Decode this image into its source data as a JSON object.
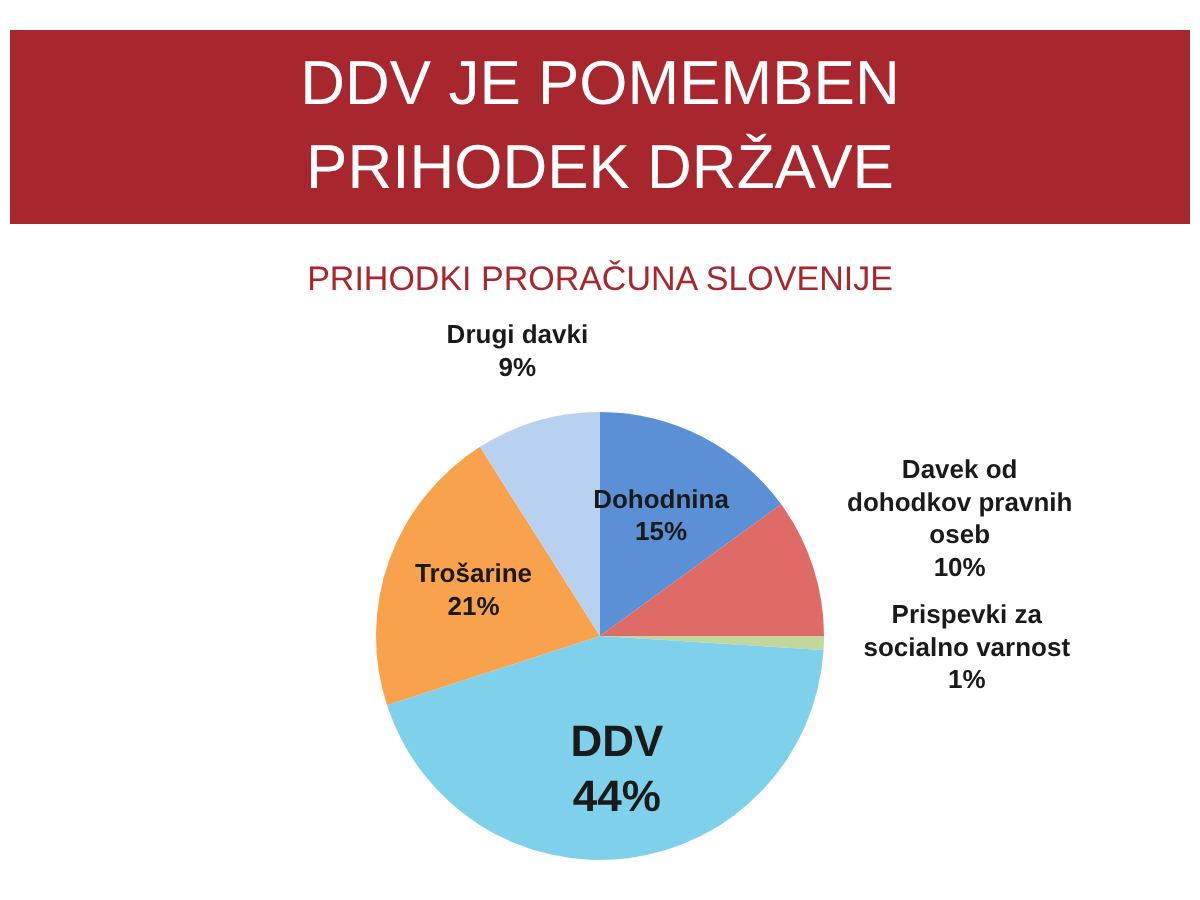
{
  "chart_data": {
    "type": "pie",
    "title": "DDV JE POMEMBEN PRIHODEK DRŽAVE",
    "subtitle": "PRIHODKI PRORAČUNA SLOVENIJE",
    "categories": [
      "Dohodnina",
      "Davek od dohodkov pravnih oseb",
      "Prispevki za socialno varnost",
      "DDV",
      "Trošarine",
      "Drugi davki"
    ],
    "values": [
      15,
      10,
      1,
      44,
      21,
      9
    ],
    "value_labels": [
      "15%",
      "10%",
      "1%",
      "44%",
      "21%",
      "9%"
    ],
    "colors": [
      "#5b8fd6",
      "#de6b66",
      "#c3d69b",
      "#7fd0ea",
      "#f9a24e",
      "#b9d1f1"
    ]
  }
}
